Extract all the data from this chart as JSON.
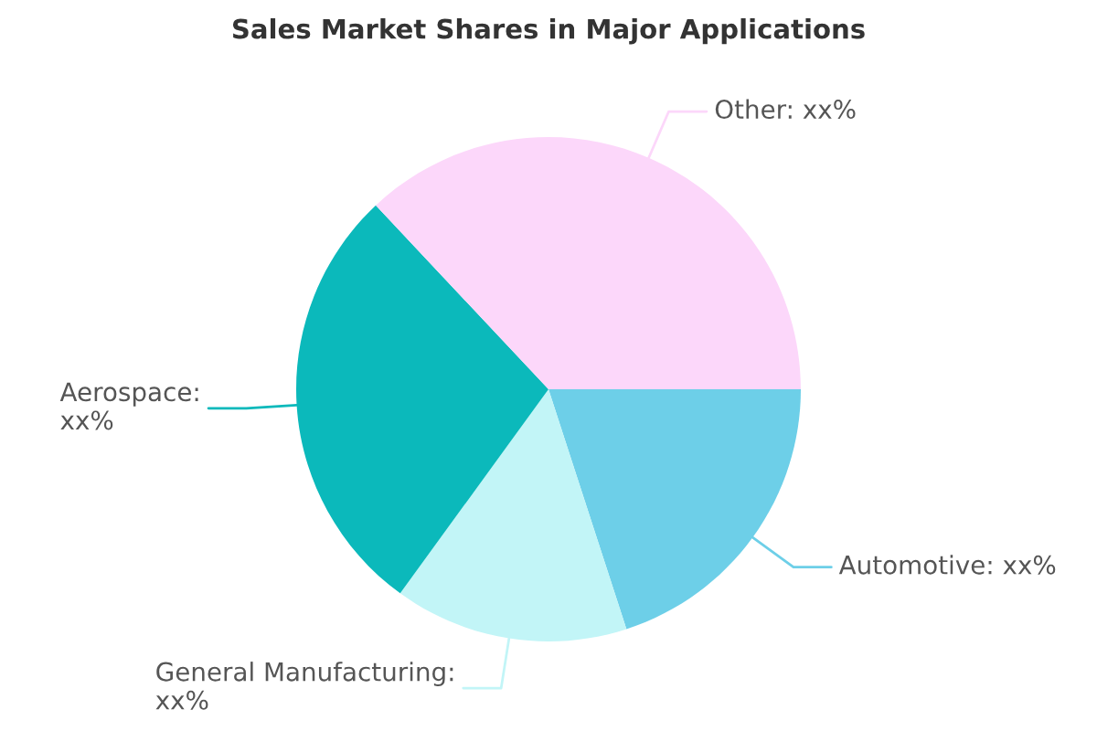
{
  "chart_data": {
    "type": "pie",
    "title": "Sales Market Shares in Major Applications",
    "categories": [
      "Automotive: xx%",
      "General Manufacturing: xx%",
      "Aerospace: xx%",
      "Other: xx%"
    ],
    "values": [
      20,
      15,
      28,
      37
    ],
    "colors": [
      "#6dcfe8",
      "#c2f5f7",
      "#0bb9bb",
      "#fcd7fa"
    ]
  }
}
